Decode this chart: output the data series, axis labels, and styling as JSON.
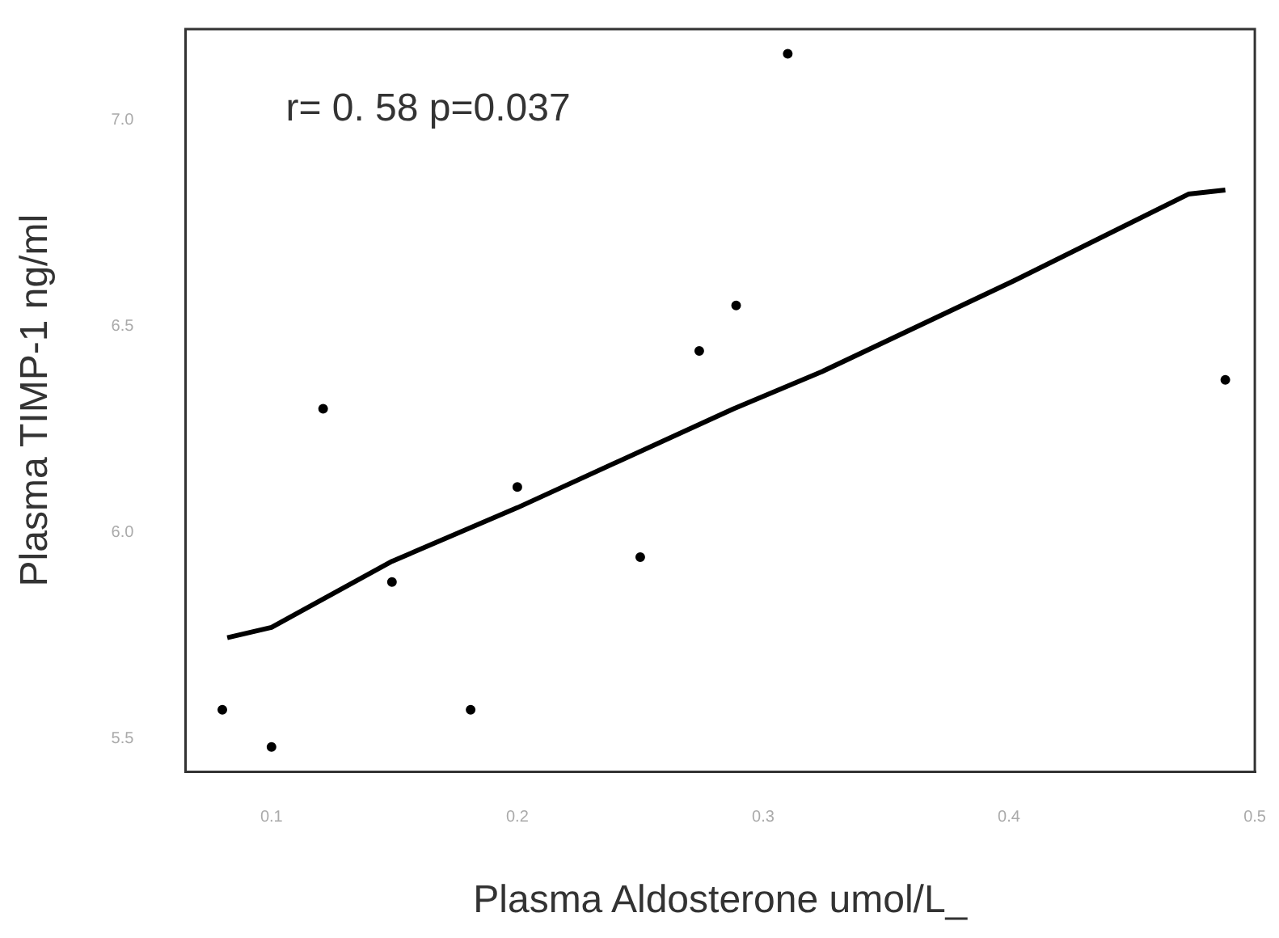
{
  "chart_data": {
    "type": "scatter",
    "xlabel": "Plasma Aldosterone umol/L_",
    "ylabel": "Plasma TIMP-1 ng/ml",
    "annotations": [
      "r= 0. 58 p=0.037"
    ],
    "xlim": [
      0.065,
      0.5
    ],
    "xticks": [
      0.1,
      0.2,
      0.3,
      0.4,
      0.5
    ],
    "ylim": [
      5.42,
      7.22
    ],
    "yticks": [
      5.5,
      {
        "value": 6,
        "label": "6.0"
      },
      6.5,
      {
        "value": 7,
        "label": "7.0"
      }
    ],
    "grid": false,
    "legend": false,
    "marker": "circle",
    "series": [
      {
        "color": "#000000",
        "x": [
          0.08,
          0.1,
          0.121,
          0.149,
          0.181,
          0.2,
          0.25,
          0.274,
          0.289,
          0.31,
          0.488
        ],
        "values": [
          5.57,
          5.48,
          6.3,
          5.88,
          5.57,
          6.11,
          5.94,
          6.44,
          6.55,
          7.16,
          6.37
        ]
      },
      {
        "type": "line",
        "color": "#000000",
        "marker": "none",
        "x": [
          0.082,
          0.1,
          0.149,
          0.2,
          0.288,
          0.324,
          0.402,
          0.473,
          0.488
        ],
        "values": [
          5.745,
          5.77,
          5.93,
          6.06,
          6.3,
          6.39,
          6.61,
          6.82,
          6.83
        ]
      }
    ]
  }
}
